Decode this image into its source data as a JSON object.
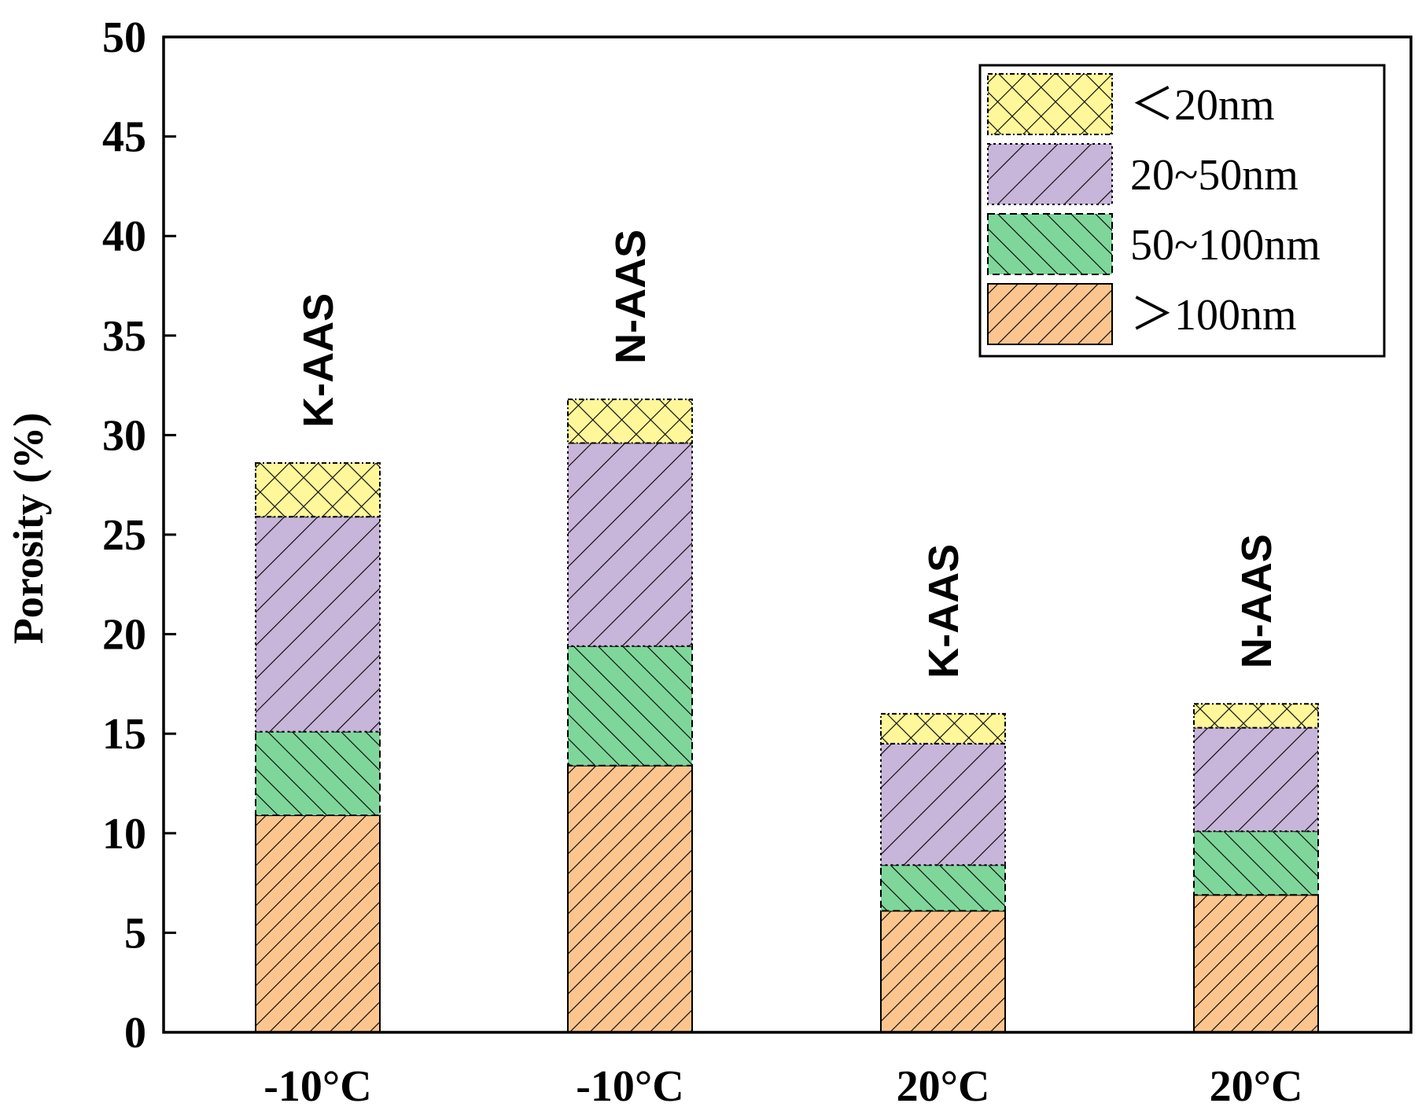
{
  "chart_data": {
    "type": "bar",
    "stacked": true,
    "title": "",
    "xlabel": "",
    "ylabel": "Porosity (%)",
    "ylim": [
      0,
      50
    ],
    "yticks": [
      0,
      5,
      10,
      15,
      20,
      25,
      30,
      35,
      40,
      45,
      50
    ],
    "categories": [
      "-10°C",
      "-10°C",
      "20°C",
      "20°C"
    ],
    "bar_labels": [
      "K-AAS",
      "N-AAS",
      "K-AAS",
      "N-AAS"
    ],
    "legend_position": "top-right",
    "series": [
      {
        "name": ">100nm",
        "legend_label": "＞100nm",
        "color": "#FDC58E",
        "hatch": "back-diagonal",
        "values": [
          10.9,
          13.4,
          6.1,
          6.9
        ]
      },
      {
        "name": "50~100nm",
        "legend_label": "50~100nm",
        "color": "#7FD69A",
        "hatch": "forward-diagonal",
        "values": [
          4.2,
          6.0,
          2.3,
          3.2
        ]
      },
      {
        "name": "20~50nm",
        "legend_label": "20~50nm",
        "color": "#C8B5DA",
        "hatch": "back-diagonal",
        "values": [
          10.8,
          10.2,
          6.1,
          5.2
        ]
      },
      {
        "name": "<20nm",
        "legend_label": "＜20nm",
        "color": "#FFF79A",
        "hatch": "cross",
        "values": [
          2.7,
          2.2,
          1.5,
          1.2
        ]
      }
    ]
  }
}
